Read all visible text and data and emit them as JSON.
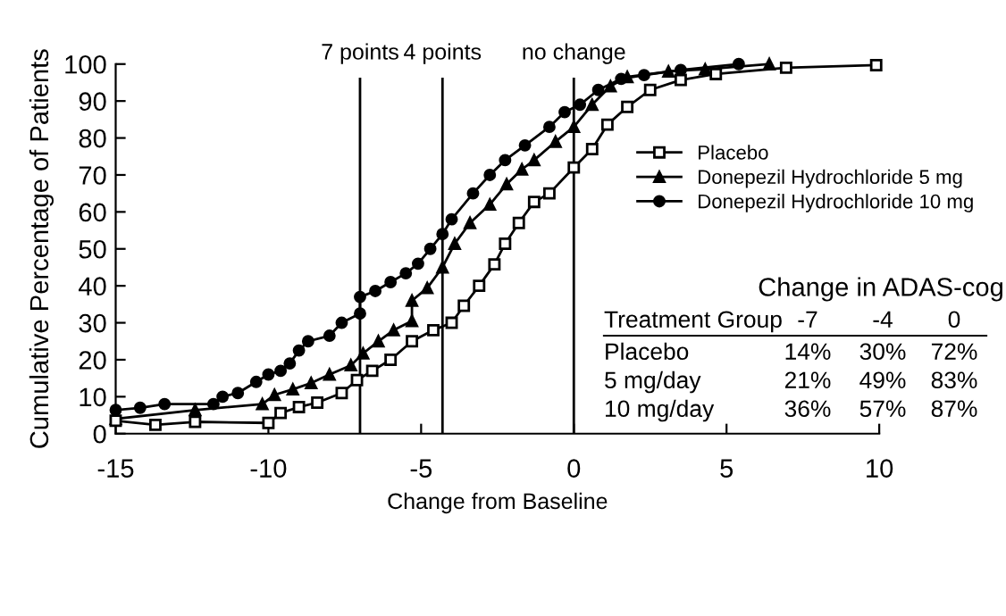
{
  "chart_data": {
    "type": "line",
    "xlabel": "Change from Baseline",
    "ylabel": "Cumulative Percentage of Patients",
    "xlim": [
      -15,
      10
    ],
    "xticks": [
      -15,
      -10,
      -5,
      0,
      5,
      10
    ],
    "ylim": [
      0,
      100
    ],
    "yticks": [
      0,
      10,
      20,
      30,
      40,
      50,
      60,
      70,
      80,
      90,
      100
    ],
    "grid": false,
    "legend": "right",
    "line_style": "solid",
    "series": [
      {
        "name": "Placebo",
        "color": "#000000",
        "marker": "square",
        "x": [
          -15,
          -13.7,
          -12.4,
          -10,
          -9.6,
          -9,
          -8.4,
          -7.6,
          -7.1,
          -6.6,
          -6,
          -5.3,
          -4.6,
          -4,
          -3.6,
          -3.1,
          -2.6,
          -2.25,
          -1.8,
          -1.3,
          -0.8,
          0,
          0.6,
          1.1,
          1.75,
          2.5,
          3.5,
          4.65,
          6.95,
          9.9
        ],
        "values": [
          3.5,
          2.4,
          3.2,
          2.9,
          5.6,
          7.2,
          8.4,
          11,
          14.5,
          17,
          20,
          25,
          28,
          30,
          34.6,
          40,
          45.8,
          51.4,
          57,
          62.7,
          65,
          72,
          77,
          83.6,
          88.4,
          93,
          95.7,
          97.3,
          99,
          99.7
        ]
      },
      {
        "name": "Donepezil Hydrochloride 5 mg",
        "color": "#000000",
        "marker": "triangle",
        "x": [
          -15,
          -12.4,
          -10.2,
          -9.8,
          -9.2,
          -8.6,
          -8,
          -7.3,
          -6.9,
          -6.4,
          -5.9,
          -5.3,
          -5.3,
          -4.8,
          -4.3,
          -3.9,
          -3.4,
          -2.75,
          -2.2,
          -1.7,
          -1.3,
          -0.6,
          0,
          0.6,
          1.2,
          1.75,
          3.1,
          4.3,
          6.4
        ],
        "values": [
          4,
          6.4,
          8,
          10.5,
          12,
          13.7,
          16,
          18.5,
          21.7,
          25,
          28,
          30.5,
          36,
          39.4,
          45,
          51.4,
          57,
          62,
          67.5,
          71.5,
          74,
          79,
          83,
          89,
          94,
          96.5,
          98,
          98.6,
          100
        ]
      },
      {
        "name": "Donepezil Hydrochloride 10 mg",
        "color": "#000000",
        "marker": "circle",
        "x": [
          -15,
          -14.2,
          -13.4,
          -11.8,
          -11.5,
          -11,
          -10.4,
          -10,
          -9.6,
          -9.3,
          -9,
          -8.7,
          -8,
          -7.6,
          -7,
          -7,
          -6.5,
          -6,
          -5.5,
          -5.1,
          -4.7,
          -4.3,
          -4,
          -3.3,
          -2.75,
          -2.25,
          -1.6,
          -0.8,
          -0.3,
          0.2,
          0.8,
          1.55,
          2.3,
          3.5,
          5.4
        ],
        "values": [
          6.4,
          7,
          8,
          8,
          10,
          11,
          14,
          16,
          17,
          19,
          22.5,
          25,
          26.5,
          30,
          32.5,
          37,
          38.6,
          41,
          43.4,
          46,
          50,
          54,
          58,
          65,
          70,
          74,
          78,
          83,
          87,
          89,
          93,
          96,
          97,
          98.4,
          100
        ]
      }
    ],
    "ref_lines": [
      {
        "axis": "x",
        "value": -7,
        "label": "7 points",
        "color": "#000000"
      },
      {
        "axis": "x",
        "value": -4.3,
        "label": "4 points",
        "color": "#000000"
      },
      {
        "axis": "x",
        "value": 0,
        "label": "no change",
        "color": "#000000"
      }
    ],
    "annotations": [
      "Change in ADAS-cog",
      "Treatment Group",
      "-7",
      "-4",
      "0",
      "Placebo",
      "14%",
      "30%",
      "72%",
      "5 mg/day",
      "21%",
      "49%",
      "83%",
      "10 mg/day",
      "36%",
      "57%",
      "87%"
    ]
  }
}
